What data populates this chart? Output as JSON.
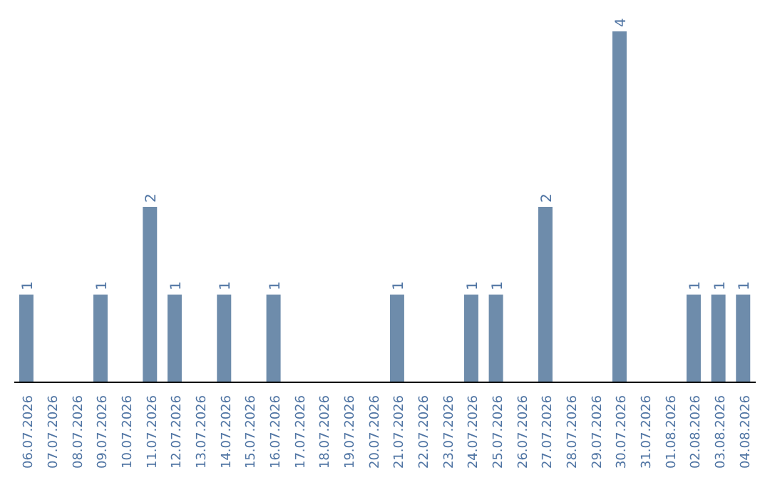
{
  "chart_data": {
    "type": "bar",
    "categories": [
      "06.07.2026",
      "07.07.2026",
      "08.07.2026",
      "09.07.2026",
      "10.07.2026",
      "11.07.2026",
      "12.07.2026",
      "13.07.2026",
      "14.07.2026",
      "15.07.2026",
      "16.07.2026",
      "17.07.2026",
      "18.07.2026",
      "19.07.2026",
      "20.07.2026",
      "21.07.2026",
      "22.07.2026",
      "23.07.2026",
      "24.07.2026",
      "25.07.2026",
      "26.07.2026",
      "27.07.2026",
      "28.07.2026",
      "29.07.2026",
      "30.07.2026",
      "31.07.2026",
      "01.08.2026",
      "02.08.2026",
      "03.08.2026",
      "04.08.2026"
    ],
    "values": [
      1,
      0,
      0,
      1,
      0,
      2,
      1,
      0,
      1,
      0,
      1,
      0,
      0,
      0,
      0,
      1,
      0,
      0,
      1,
      1,
      0,
      2,
      0,
      0,
      4,
      0,
      0,
      1,
      1,
      1
    ],
    "value_labels": [
      "1",
      null,
      null,
      "1",
      null,
      "2",
      "1",
      null,
      "1",
      null,
      "1",
      null,
      null,
      null,
      null,
      "1",
      null,
      null,
      "1",
      "1",
      null,
      "2",
      null,
      null,
      "4",
      null,
      null,
      "1",
      "1",
      "1"
    ],
    "color": "#6e8cab",
    "tick_labels": "x",
    "grid": false,
    "legend": false
  }
}
